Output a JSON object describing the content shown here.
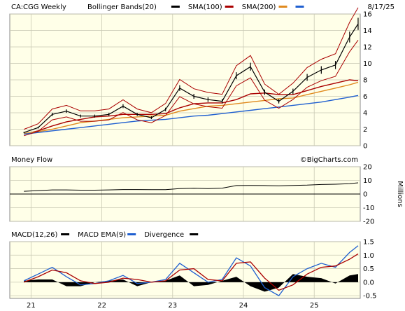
{
  "chart_data": [
    {
      "type": "line",
      "title": "CA:CGG Weekly",
      "date": "8/17/25",
      "legend": [
        {
          "name": "Bollinger Bands(20)",
          "color": "#000000"
        },
        {
          "name": "SMA(100)",
          "color": "#aa0000"
        },
        {
          "name": "SMA(200)",
          "color": "#e08a1e"
        },
        {
          "name": "",
          "color": "#1f5fd0"
        }
      ],
      "ylim": [
        0,
        16
      ],
      "y_ticks": [
        "0",
        "2",
        "4",
        "6",
        "8",
        "10",
        "12",
        "14",
        "16"
      ],
      "x_ticks": [
        "21",
        "22",
        "23",
        "24",
        "25"
      ],
      "x": [
        2020.9,
        2021.1,
        2021.3,
        2021.5,
        2021.7,
        2021.9,
        2022.1,
        2022.3,
        2022.5,
        2022.7,
        2022.9,
        2023.1,
        2023.3,
        2023.5,
        2023.7,
        2023.9,
        2024.1,
        2024.3,
        2024.5,
        2024.7,
        2024.9,
        2025.1,
        2025.3,
        2025.5,
        2025.62
      ],
      "series": [
        {
          "name": "CA:CGG Weekly",
          "color": "#000000",
          "values": [
            1.6,
            2.2,
            3.8,
            4.2,
            3.6,
            3.6,
            3.8,
            4.8,
            3.8,
            3.4,
            4.4,
            7.0,
            6.0,
            5.6,
            5.4,
            8.5,
            9.6,
            6.5,
            5.4,
            6.6,
            8.3,
            9.2,
            9.8,
            13.2,
            14.8
          ]
        },
        {
          "name": "SMA(100)",
          "color": "#aa0000",
          "values": [
            1.4,
            1.8,
            2.4,
            2.9,
            3.2,
            3.5,
            3.6,
            3.8,
            3.8,
            3.8,
            3.9,
            4.6,
            5.1,
            5.2,
            5.2,
            5.6,
            6.3,
            6.4,
            6.2,
            6.2,
            6.7,
            7.2,
            7.6,
            8.0,
            7.9
          ]
        },
        {
          "name": "SMA(200)",
          "color": "#e08a1e",
          "values": [
            1.5,
            1.7,
            2.0,
            2.4,
            2.8,
            3.0,
            3.2,
            3.4,
            3.5,
            3.6,
            3.7,
            4.2,
            4.5,
            4.8,
            4.9,
            5.1,
            5.3,
            5.5,
            5.7,
            5.8,
            6.2,
            6.6,
            7.0,
            7.4,
            7.7
          ]
        },
        {
          "name": "",
          "color": "#1f5fd0",
          "values": [
            1.4,
            1.6,
            1.8,
            2.0,
            2.2,
            2.4,
            2.6,
            2.8,
            3.0,
            3.1,
            3.2,
            3.4,
            3.6,
            3.7,
            3.9,
            4.1,
            4.3,
            4.5,
            4.7,
            4.9,
            5.1,
            5.3,
            5.6,
            5.9,
            6.1
          ]
        }
      ]
    },
    {
      "type": "line",
      "title": "Money Flow",
      "watermark": "©BigCharts.com",
      "ylabel": "Millions",
      "ylim": [
        -20,
        20
      ],
      "y_ticks": [
        "20",
        "10",
        "0",
        "-10",
        "-20"
      ],
      "x": [
        2020.9,
        2021.1,
        2021.3,
        2021.5,
        2021.7,
        2021.9,
        2022.1,
        2022.3,
        2022.5,
        2022.7,
        2022.9,
        2023.1,
        2023.3,
        2023.5,
        2023.7,
        2023.9,
        2024.1,
        2024.3,
        2024.5,
        2024.7,
        2024.9,
        2025.1,
        2025.3,
        2025.5,
        2025.62
      ],
      "series": [
        {
          "name": "Money Flow",
          "color": "#000000",
          "values": [
            2.0,
            2.5,
            3.0,
            3.0,
            2.8,
            2.8,
            3.0,
            3.3,
            3.3,
            3.2,
            3.2,
            4.0,
            4.2,
            4.0,
            4.3,
            6.2,
            6.3,
            6.2,
            6.0,
            6.3,
            6.5,
            7.0,
            7.2,
            7.6,
            8.2
          ]
        }
      ]
    },
    {
      "type": "line",
      "title": "MACD(12,26)",
      "legend": [
        {
          "name": "MACD(12,26)",
          "color": "#000000"
        },
        {
          "name": "MACD EMA(9)",
          "color": "#1f5fd0"
        },
        {
          "name": "Divergence",
          "color": "#000000"
        }
      ],
      "ylim": [
        -0.6,
        1.5
      ],
      "y_ticks": [
        "1.5",
        "1.0",
        "0.5",
        "0.0",
        "-0.5"
      ],
      "x": [
        2020.9,
        2021.1,
        2021.3,
        2021.5,
        2021.7,
        2021.9,
        2022.1,
        2022.3,
        2022.5,
        2022.7,
        2022.9,
        2023.1,
        2023.3,
        2023.5,
        2023.7,
        2023.9,
        2024.1,
        2024.3,
        2024.5,
        2024.7,
        2024.9,
        2025.1,
        2025.3,
        2025.5,
        2025.62
      ],
      "series": [
        {
          "name": "MACD",
          "color": "#1f5fd0",
          "values": [
            0.05,
            0.3,
            0.55,
            0.2,
            -0.1,
            -0.05,
            0.05,
            0.25,
            -0.05,
            0.0,
            0.1,
            0.7,
            0.35,
            0.0,
            0.1,
            0.9,
            0.6,
            -0.2,
            -0.5,
            0.2,
            0.5,
            0.7,
            0.55,
            1.1,
            1.35
          ]
        },
        {
          "name": "MACD EMA(9)",
          "color": "#aa0000",
          "values": [
            0.0,
            0.2,
            0.45,
            0.35,
            0.05,
            -0.05,
            0.0,
            0.15,
            0.1,
            0.0,
            0.05,
            0.45,
            0.5,
            0.1,
            0.05,
            0.7,
            0.75,
            0.15,
            -0.3,
            -0.1,
            0.3,
            0.55,
            0.6,
            0.85,
            1.05
          ]
        },
        {
          "name": "Divergence",
          "color": "#000000",
          "values": [
            0.05,
            0.1,
            0.1,
            -0.15,
            -0.15,
            0.0,
            0.05,
            0.1,
            -0.15,
            0.0,
            0.05,
            0.25,
            -0.15,
            -0.1,
            0.05,
            0.2,
            -0.15,
            -0.35,
            -0.2,
            0.3,
            0.2,
            0.15,
            -0.05,
            0.25,
            0.3
          ]
        }
      ]
    }
  ]
}
